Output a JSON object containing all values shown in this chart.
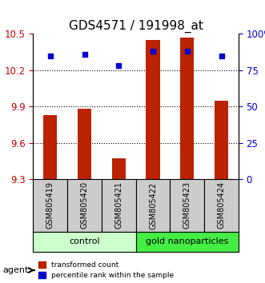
{
  "title": "GDS4571 / 191998_at",
  "categories": [
    "GSM805419",
    "GSM805420",
    "GSM805421",
    "GSM805422",
    "GSM805423",
    "GSM805424"
  ],
  "bar_values": [
    9.83,
    9.88,
    9.47,
    10.45,
    10.47,
    9.95
  ],
  "percentile_values": [
    85,
    86,
    78,
    88,
    88,
    85
  ],
  "bar_bottom": 9.3,
  "ylim_left": [
    9.3,
    10.5
  ],
  "ylim_right": [
    0,
    100
  ],
  "yticks_left": [
    9.3,
    9.6,
    9.9,
    10.2,
    10.5
  ],
  "yticks_right": [
    0,
    25,
    50,
    75,
    100
  ],
  "ytick_labels_right": [
    "0",
    "25",
    "50",
    "75",
    "100%"
  ],
  "bar_color": "#bb2200",
  "dot_color": "#0000cc",
  "grid_color": "#000000",
  "groups": [
    {
      "label": "control",
      "start": 0,
      "end": 3,
      "color": "#ccffcc"
    },
    {
      "label": "gold nanoparticles",
      "start": 3,
      "end": 6,
      "color": "#44ee44"
    }
  ],
  "agent_label": "agent",
  "legend_bar_label": "transformed count",
  "legend_dot_label": "percentile rank within the sample",
  "box_color": "#cccccc",
  "title_fontsize": 11,
  "axis_fontsize": 9,
  "tick_fontsize": 8.5
}
